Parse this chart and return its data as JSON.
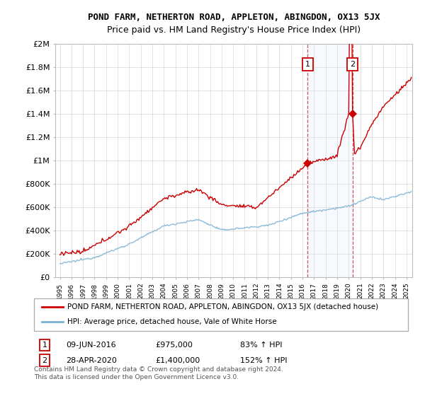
{
  "title": "POND FARM, NETHERTON ROAD, APPLETON, ABINGDON, OX13 5JX",
  "subtitle": "Price paid vs. HM Land Registry's House Price Index (HPI)",
  "red_label": "POND FARM, NETHERTON ROAD, APPLETON, ABINGDON, OX13 5JX (detached house)",
  "blue_label": "HPI: Average price, detached house, Vale of White Horse",
  "annotation1_date": "09-JUN-2016",
  "annotation1_price": "£975,000",
  "annotation1_pct": "83% ↑ HPI",
  "annotation2_date": "28-APR-2020",
  "annotation2_price": "£1,400,000",
  "annotation2_pct": "152% ↑ HPI",
  "footer": "Contains HM Land Registry data © Crown copyright and database right 2024.\nThis data is licensed under the Open Government Licence v3.0.",
  "ylim": [
    0,
    2000000
  ],
  "yticks": [
    0,
    200000,
    400000,
    600000,
    800000,
    1000000,
    1200000,
    1400000,
    1600000,
    1800000,
    2000000
  ],
  "ytick_labels": [
    "£0",
    "£200K",
    "£400K",
    "£600K",
    "£800K",
    "£1M",
    "£1.2M",
    "£1.4M",
    "£1.6M",
    "£1.8M",
    "£2M"
  ],
  "xlim_start": 1994.6,
  "xlim_end": 2025.5,
  "marker1_x": 2016.44,
  "marker1_y": 975000,
  "marker2_x": 2020.33,
  "marker2_y": 1400000,
  "vline1_x": 2016.44,
  "vline2_x": 2020.33,
  "red_color": "#cc0000",
  "blue_color": "#7ab0d4",
  "vline_color": "#cc4444",
  "span_color": "#ddeeff",
  "marker_color": "#cc0000",
  "title_fontsize": 9,
  "subtitle_fontsize": 9,
  "axis_fontsize": 8
}
